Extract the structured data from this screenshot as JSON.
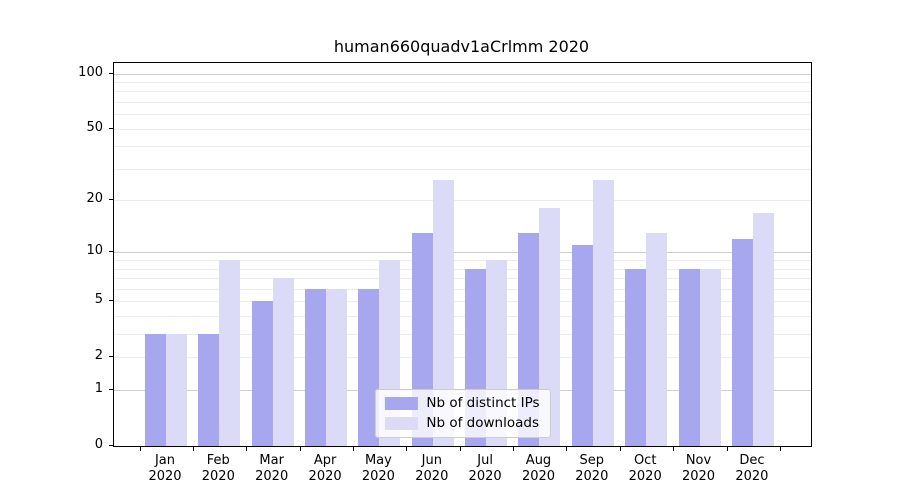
{
  "title": "human660quadv1aCrlmm 2020",
  "colors": {
    "ips_bar": "#a7a7f0",
    "downloads_bar": "#dbdbf8",
    "grid_major": "#cfcfcf",
    "grid_minor": "#ededed",
    "axis": "#000000",
    "legend_border": "#cccccc"
  },
  "legend": {
    "items": [
      {
        "label": "Nb of distinct IPs",
        "color_key": "ips_bar"
      },
      {
        "label": "Nb of downloads",
        "color_key": "downloads_bar"
      }
    ]
  },
  "chart_data": {
    "type": "bar",
    "title": "human660quadv1aCrlmm 2020",
    "categories": [
      "Jan 2020",
      "Feb 2020",
      "Mar 2020",
      "Apr 2020",
      "May 2020",
      "Jun 2020",
      "Jul 2020",
      "Aug 2020",
      "Sep 2020",
      "Oct 2020",
      "Nov 2020",
      "Dec 2020"
    ],
    "series": [
      {
        "name": "Nb of distinct IPs",
        "values": [
          3,
          3,
          5,
          6,
          6,
          13,
          8,
          13,
          11,
          8,
          8,
          12
        ]
      },
      {
        "name": "Nb of downloads",
        "values": [
          3,
          9,
          7,
          6,
          9,
          26,
          9,
          18,
          26,
          13,
          8,
          17
        ]
      }
    ],
    "xlabel": "",
    "ylabel": "",
    "yscale": "log1p",
    "ylim": [
      0,
      114
    ],
    "yticks": [
      0,
      1,
      2,
      5,
      10,
      20,
      50,
      100
    ],
    "grid": "horizontal, major and minor log gridlines",
    "legend_position": "lower center"
  }
}
